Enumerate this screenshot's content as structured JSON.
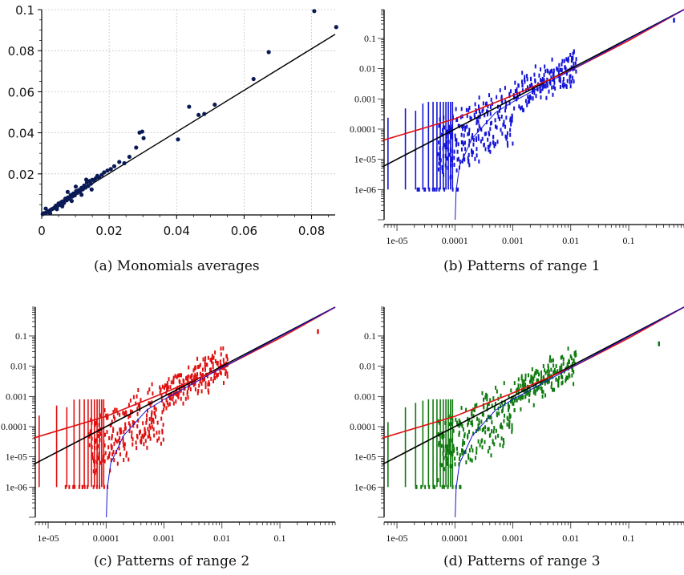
{
  "colors": {
    "black": "#000000",
    "red": "#e01010",
    "blue": "#1414d8",
    "green": "#0f7a0f",
    "dark_blue_points": "#0a1a55",
    "grid": "#c8c8c8"
  },
  "captions": {
    "a": "(a)  Monomials averages",
    "b": "(b)  Patterns of range 1",
    "c": "(c)  Patterns of range 2",
    "d": "(d)  Patterns of range 3"
  },
  "chart_data": [
    {
      "id": "a",
      "type": "scatter",
      "caption": "(a)  Monomials averages",
      "xlim": [
        0,
        0.087
      ],
      "ylim": [
        0,
        0.1
      ],
      "grid": true,
      "xticks": [
        "0",
        "0.02",
        "0.04",
        "0.06",
        "0.08"
      ],
      "xtick_values": [
        0,
        0.02,
        0.04,
        0.06,
        0.08
      ],
      "yticks": [
        "0.02",
        "0.04",
        "0.06",
        "0.08",
        "0.1"
      ],
      "ytick_values": [
        0.02,
        0.04,
        0.06,
        0.08,
        0.1
      ],
      "points": [
        [
          0.0003,
          0.0004
        ],
        [
          0.0006,
          0.0008
        ],
        [
          0.001,
          0.0009
        ],
        [
          0.0014,
          0.0012
        ],
        [
          0.0018,
          0.0017
        ],
        [
          0.0022,
          0.0019
        ],
        [
          0.0026,
          0.0024
        ],
        [
          0.003,
          0.0028
        ],
        [
          0.0034,
          0.0031
        ],
        [
          0.0038,
          0.0036
        ],
        [
          0.0042,
          0.0045
        ],
        [
          0.0046,
          0.0042
        ],
        [
          0.005,
          0.0056
        ],
        [
          0.0054,
          0.0049
        ],
        [
          0.0058,
          0.0062
        ],
        [
          0.0062,
          0.0066
        ],
        [
          0.0066,
          0.0058
        ],
        [
          0.007,
          0.0079
        ],
        [
          0.0074,
          0.0071
        ],
        [
          0.0078,
          0.0085
        ],
        [
          0.0082,
          0.0078
        ],
        [
          0.0086,
          0.0097
        ],
        [
          0.009,
          0.0089
        ],
        [
          0.0094,
          0.0104
        ],
        [
          0.0098,
          0.0095
        ],
        [
          0.0102,
          0.0116
        ],
        [
          0.0106,
          0.0108
        ],
        [
          0.011,
          0.0121
        ],
        [
          0.0114,
          0.0113
        ],
        [
          0.0118,
          0.0132
        ],
        [
          0.0122,
          0.0125
        ],
        [
          0.0126,
          0.0143
        ],
        [
          0.013,
          0.0133
        ],
        [
          0.0134,
          0.0158
        ],
        [
          0.0138,
          0.0141
        ],
        [
          0.0142,
          0.0165
        ],
        [
          0.0146,
          0.0152
        ],
        [
          0.015,
          0.0171
        ],
        [
          0.0155,
          0.0168
        ],
        [
          0.016,
          0.0178
        ],
        [
          0.0165,
          0.019
        ],
        [
          0.017,
          0.0182
        ],
        [
          0.0178,
          0.0195
        ],
        [
          0.0185,
          0.0207
        ],
        [
          0.0195,
          0.0216
        ],
        [
          0.0205,
          0.0223
        ],
        [
          0.0215,
          0.0237
        ],
        [
          0.023,
          0.0258
        ],
        [
          0.0245,
          0.0252
        ],
        [
          0.026,
          0.0283
        ],
        [
          0.028,
          0.0328
        ],
        [
          0.029,
          0.0401
        ],
        [
          0.0298,
          0.0406
        ],
        [
          0.0302,
          0.0374
        ],
        [
          0.0404,
          0.0368
        ],
        [
          0.0437,
          0.0527
        ],
        [
          0.0465,
          0.0487
        ],
        [
          0.0482,
          0.0492
        ],
        [
          0.0513,
          0.0537
        ],
        [
          0.0628,
          0.0662
        ],
        [
          0.0673,
          0.0793
        ],
        [
          0.0808,
          0.0993
        ],
        [
          0.0873,
          0.0915
        ],
        [
          0.0012,
          0.0031
        ],
        [
          0.0025,
          0.0008
        ],
        [
          0.0045,
          0.0028
        ],
        [
          0.0061,
          0.0042
        ],
        [
          0.0077,
          0.0112
        ],
        [
          0.0089,
          0.0068
        ],
        [
          0.0101,
          0.0138
        ],
        [
          0.0118,
          0.0098
        ],
        [
          0.0132,
          0.0172
        ],
        [
          0.0148,
          0.0124
        ]
      ],
      "fit_line": [
        [
          0,
          0
        ],
        [
          0.087,
          0.088
        ]
      ]
    },
    {
      "id": "b",
      "type": "scatter",
      "caption": "(b)  Patterns of range 1",
      "scale": "log-log",
      "point_color": "#1414d8",
      "xticks": [
        "1e-05",
        "0.0001",
        "0.001",
        "0.01",
        "0.1"
      ],
      "yticks": [
        "1e-06",
        "1e-05",
        "0.0001",
        "0.001",
        "0.01",
        "0.1"
      ],
      "xlim": [
        6e-06,
        0.9
      ],
      "ylim": [
        1e-07,
        0.9
      ],
      "curves": [
        {
          "name": "black",
          "color": "#000000",
          "points": [
            [
              5.6e-06,
              5.6e-06
            ],
            [
              0.9,
              0.9
            ]
          ]
        },
        {
          "name": "red",
          "color": "#e01010",
          "points": [
            [
              5.6e-06,
              4.2e-05
            ],
            [
              0.0001,
              0.00022
            ],
            [
              0.001,
              0.0013
            ],
            [
              0.01,
              0.0088
            ],
            [
              0.1,
              0.085
            ],
            [
              0.9,
              0.9
            ]
          ]
        },
        {
          "name": "blue",
          "color": "#1414d8",
          "points": [
            [
              0.000101,
              1e-07
            ],
            [
              0.000105,
              9e-07
            ],
            [
              0.00012,
              6e-06
            ],
            [
              0.0002,
              5e-05
            ],
            [
              0.0005,
              0.00035
            ],
            [
              0.001,
              0.0008
            ],
            [
              0.01,
              0.0088
            ],
            [
              0.1,
              0.095
            ],
            [
              0.9,
              0.9
            ]
          ]
        }
      ],
      "outlier": [
        0.6,
        0.4
      ]
    },
    {
      "id": "c",
      "type": "scatter",
      "caption": "(c)  Patterns of range 2",
      "scale": "log-log",
      "point_color": "#e01010",
      "xticks": [
        "1e-05",
        "0.0001",
        "0.001",
        "0.01",
        "0.1"
      ],
      "yticks": [
        "1e-06",
        "1e-05",
        "0.0001",
        "0.001",
        "0.01",
        "0.1"
      ],
      "xlim": [
        6e-06,
        0.9
      ],
      "ylim": [
        1e-07,
        0.9
      ],
      "curves": [
        {
          "name": "black",
          "color": "#000000",
          "points": [
            [
              5.6e-06,
              5.6e-06
            ],
            [
              0.9,
              0.9
            ]
          ]
        },
        {
          "name": "red",
          "color": "#e01010",
          "points": [
            [
              5.6e-06,
              4.2e-05
            ],
            [
              0.0001,
              0.00022
            ],
            [
              0.001,
              0.0013
            ],
            [
              0.01,
              0.0088
            ],
            [
              0.1,
              0.085
            ],
            [
              0.9,
              0.9
            ]
          ]
        },
        {
          "name": "blue",
          "color": "#1414d8",
          "points": [
            [
              0.000101,
              1e-07
            ],
            [
              0.000105,
              9e-07
            ],
            [
              0.00012,
              6e-06
            ],
            [
              0.0002,
              5e-05
            ],
            [
              0.0005,
              0.00035
            ],
            [
              0.001,
              0.0008
            ],
            [
              0.01,
              0.0088
            ],
            [
              0.1,
              0.095
            ],
            [
              0.9,
              0.9
            ]
          ]
        }
      ],
      "outlier": [
        0.45,
        0.14
      ]
    },
    {
      "id": "d",
      "type": "scatter",
      "caption": "(d)  Patterns of range 3",
      "scale": "log-log",
      "point_color": "#0f7a0f",
      "xticks": [
        "1e-05",
        "0.0001",
        "0.001",
        "0.01",
        "0.1"
      ],
      "yticks": [
        "1e-06",
        "1e-05",
        "0.0001",
        "0.001",
        "0.01",
        "0.1"
      ],
      "xlim": [
        6e-06,
        0.9
      ],
      "ylim": [
        1e-07,
        0.9
      ],
      "curves": [
        {
          "name": "black",
          "color": "#000000",
          "points": [
            [
              5.6e-06,
              5.6e-06
            ],
            [
              0.9,
              0.9
            ]
          ]
        },
        {
          "name": "red",
          "color": "#e01010",
          "points": [
            [
              5.6e-06,
              4.2e-05
            ],
            [
              0.0001,
              0.00022
            ],
            [
              0.001,
              0.0013
            ],
            [
              0.01,
              0.0088
            ],
            [
              0.1,
              0.085
            ],
            [
              0.9,
              0.9
            ]
          ]
        },
        {
          "name": "blue",
          "color": "#1414d8",
          "points": [
            [
              0.000101,
              1e-07
            ],
            [
              0.000105,
              9e-07
            ],
            [
              0.00012,
              6e-06
            ],
            [
              0.0002,
              5e-05
            ],
            [
              0.0005,
              0.00035
            ],
            [
              0.001,
              0.0008
            ],
            [
              0.01,
              0.0088
            ],
            [
              0.1,
              0.095
            ],
            [
              0.9,
              0.9
            ]
          ]
        }
      ],
      "outlier": [
        0.33,
        0.055
      ]
    }
  ]
}
